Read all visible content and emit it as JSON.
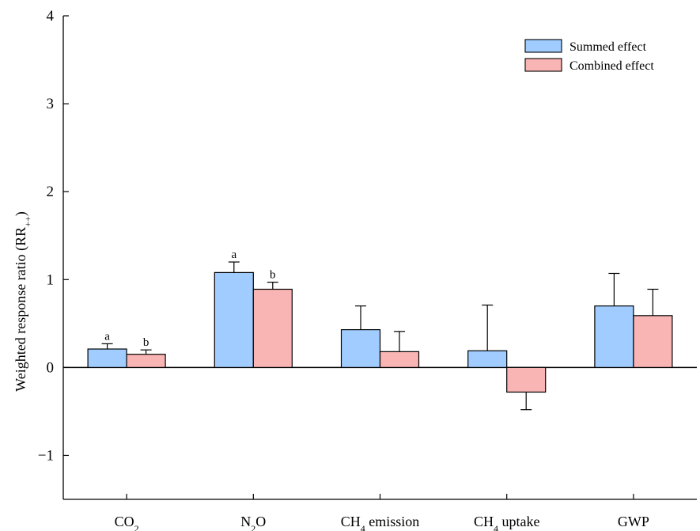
{
  "chart_data": {
    "type": "bar",
    "ylabel": {
      "main": "Weighted response ratio (RR",
      "sub": "++",
      "close": ")"
    },
    "ylim": [
      -1.5,
      4
    ],
    "yticks": [
      -1,
      0,
      1,
      2,
      3,
      4
    ],
    "ytick_labels": [
      "−1",
      "0",
      "1",
      "2",
      "3",
      "4"
    ],
    "categories": [
      {
        "pre": "CO",
        "sub": "2",
        "post": ""
      },
      {
        "pre": "N",
        "sub": "2",
        "post": "O"
      },
      {
        "pre": "CH",
        "sub": "4",
        "post": " emission"
      },
      {
        "pre": "CH",
        "sub": "4",
        "post": " uptake"
      },
      {
        "pre": "GWP",
        "sub": "",
        "post": ""
      }
    ],
    "series": [
      {
        "name": "Summed effect",
        "color": "#a0ccff",
        "values": [
          0.21,
          1.08,
          0.43,
          0.19,
          0.7
        ],
        "errors": [
          0.06,
          0.12,
          0.27,
          0.52,
          0.37
        ],
        "sig_labels": [
          "a",
          "a",
          "",
          "",
          ""
        ]
      },
      {
        "name": "Combined effect",
        "color": "#f9b4b4",
        "values": [
          0.15,
          0.89,
          0.18,
          -0.28,
          0.59
        ],
        "errors": [
          0.05,
          0.08,
          0.23,
          0.2,
          0.3
        ],
        "sig_labels": [
          "b",
          "b",
          "",
          "",
          ""
        ]
      }
    ],
    "grid": false,
    "legend_position": "top-right"
  }
}
